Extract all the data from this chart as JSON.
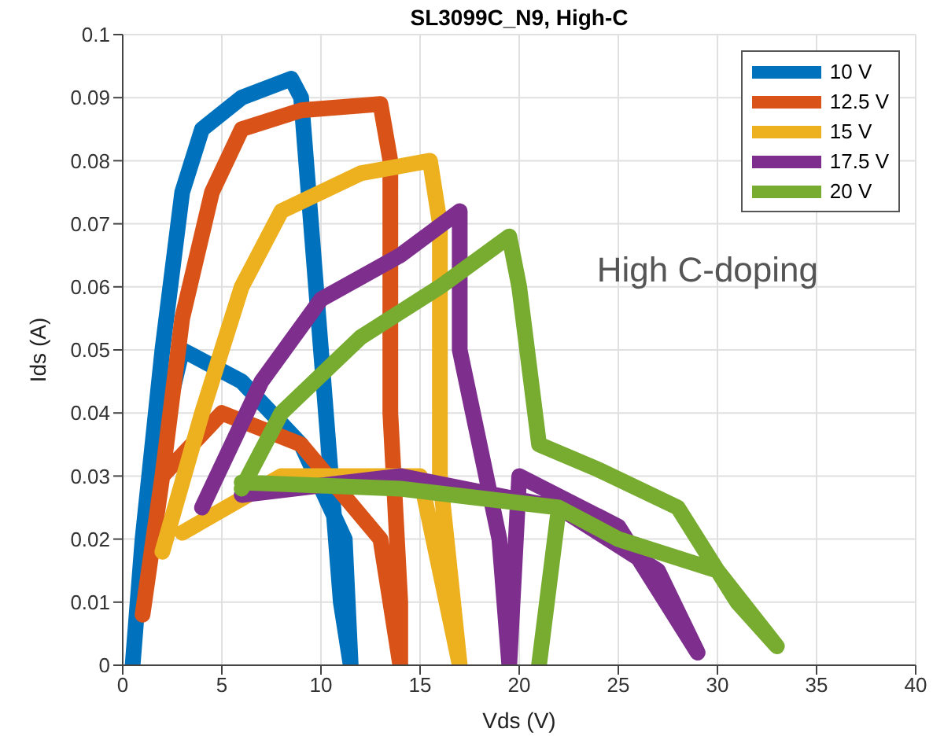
{
  "chart_data": {
    "type": "line",
    "title": "SL3099C_N9, High-C",
    "xlabel": "Vds (V)",
    "ylabel": "Ids (A)",
    "xlim": [
      0,
      40
    ],
    "xticks": [
      0,
      5,
      10,
      15,
      20,
      25,
      30,
      35,
      40
    ],
    "ylim": [
      0,
      0.1
    ],
    "yticks": [
      0,
      0.01,
      0.02,
      0.03,
      0.04,
      0.05,
      0.06,
      0.07,
      0.08,
      0.09,
      0.1
    ],
    "grid": true,
    "legend": "top right",
    "marker": "none",
    "line_style": "solid",
    "annotations": [
      "High C-doping"
    ],
    "series": [
      {
        "name": "10 V",
        "color": "#0072bd",
        "x": [
          0.5,
          1,
          2,
          3,
          4,
          6,
          8.5,
          9,
          10,
          11,
          11.5,
          11.2,
          9,
          6,
          3,
          1.5
        ],
        "values": [
          0,
          0.02,
          0.05,
          0.075,
          0.085,
          0.09,
          0.093,
          0.09,
          0.05,
          0.01,
          0,
          0.02,
          0.035,
          0.045,
          0.05,
          0.03
        ]
      },
      {
        "name": "12.5 V",
        "color": "#d95319",
        "x": [
          1,
          2,
          3,
          4.5,
          6,
          9,
          13,
          13.5,
          13.5,
          14,
          14,
          13,
          9,
          5,
          2
        ],
        "values": [
          0.008,
          0.03,
          0.055,
          0.075,
          0.085,
          0.088,
          0.089,
          0.08,
          0.04,
          0.01,
          0,
          0.02,
          0.035,
          0.04,
          0.03
        ]
      },
      {
        "name": "15 V",
        "color": "#edb120",
        "x": [
          2,
          4,
          6,
          8,
          12,
          15.5,
          16,
          16,
          17,
          15,
          8,
          3
        ],
        "values": [
          0.018,
          0.04,
          0.06,
          0.072,
          0.078,
          0.08,
          0.07,
          0.03,
          0,
          0.03,
          0.03,
          0.021
        ]
      },
      {
        "name": "17.5 V",
        "color": "#7e2f8e",
        "x": [
          4,
          7,
          10,
          14,
          17,
          17,
          19,
          19.5,
          20,
          25,
          29,
          27,
          22,
          14,
          6
        ],
        "values": [
          0.025,
          0.045,
          0.058,
          0.065,
          0.072,
          0.05,
          0.02,
          0,
          0.03,
          0.022,
          0.002,
          0.015,
          0.025,
          0.03,
          0.027
        ]
      },
      {
        "name": "20 V",
        "color": "#77ac30",
        "x": [
          6,
          8,
          12,
          16,
          19.5,
          20,
          21,
          24,
          28,
          31,
          33,
          30,
          25,
          22,
          21,
          22,
          14,
          6
        ],
        "values": [
          0.028,
          0.04,
          0.052,
          0.06,
          0.068,
          0.06,
          0.035,
          0.031,
          0.025,
          0.01,
          0.003,
          0.015,
          0.02,
          0.025,
          0,
          0.025,
          0.028,
          0.029
        ]
      }
    ]
  }
}
